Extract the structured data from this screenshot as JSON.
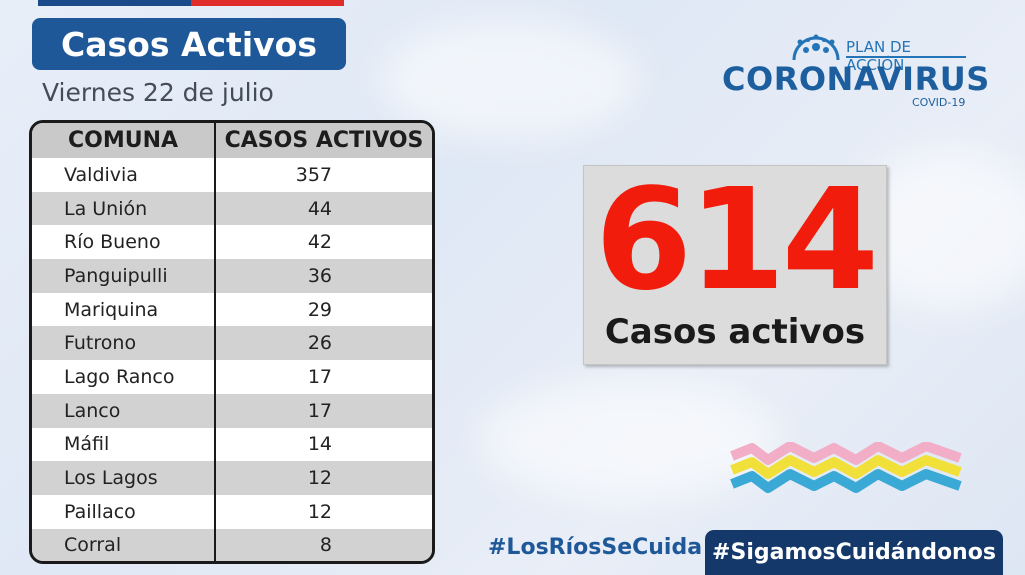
{
  "title": "Casos Activos",
  "date": "Viernes 22 de julio",
  "table": {
    "headers": [
      "COMUNA",
      "CASOS ACTIVOS"
    ],
    "rows": [
      {
        "comuna": "Valdivia",
        "casos": "357"
      },
      {
        "comuna": "La Unión",
        "casos": "44"
      },
      {
        "comuna": "Río Bueno",
        "casos": "42"
      },
      {
        "comuna": "Panguipulli",
        "casos": "36"
      },
      {
        "comuna": "Mariquina",
        "casos": "29"
      },
      {
        "comuna": "Futrono",
        "casos": "26"
      },
      {
        "comuna": "Lago Ranco",
        "casos": "17"
      },
      {
        "comuna": "Lanco",
        "casos": "17"
      },
      {
        "comuna": "Máfil",
        "casos": "14"
      },
      {
        "comuna": "Los Lagos",
        "casos": "12"
      },
      {
        "comuna": "Paillaco",
        "casos": "12"
      },
      {
        "comuna": "Corral",
        "casos": "8"
      }
    ]
  },
  "logo": {
    "plan": "PLAN DE ACCIÓN",
    "name": "CORONAVIRUS",
    "sub": "COVID-19",
    "icon": "virus-icon"
  },
  "summary": {
    "total": "614",
    "label": "Casos activos"
  },
  "hashtags": {
    "primary": "#LosRíosSeCuida",
    "secondary": "#SigamosCuidándonos"
  },
  "colors": {
    "brand_blue": "#1f5898",
    "accent_red": "#f21c0c",
    "dark_navy": "#15386a"
  }
}
